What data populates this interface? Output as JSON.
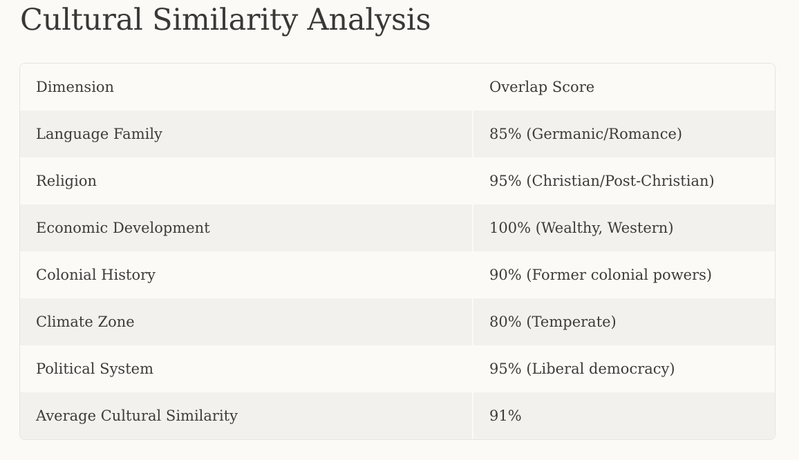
{
  "page": {
    "title": "Cultural Similarity Analysis"
  },
  "table": {
    "headers": [
      "Dimension",
      "Overlap Score"
    ],
    "rows": [
      [
        "Language Family",
        "85% (Germanic/Romance)"
      ],
      [
        "Religion",
        "95% (Christian/Post-Christian)"
      ],
      [
        "Economic Development",
        "100% (Wealthy, Western)"
      ],
      [
        "Colonial History",
        "90% (Former colonial powers)"
      ],
      [
        "Climate Zone",
        "80% (Temperate)"
      ],
      [
        "Political System",
        "95% (Liberal democracy)"
      ],
      [
        "Average Cultural Similarity",
        "91%"
      ]
    ]
  },
  "colors": {
    "background": "#fbfaf7",
    "stripe": "#f2f1ee",
    "text": "#3d3b38",
    "border": "#e6e4df"
  }
}
